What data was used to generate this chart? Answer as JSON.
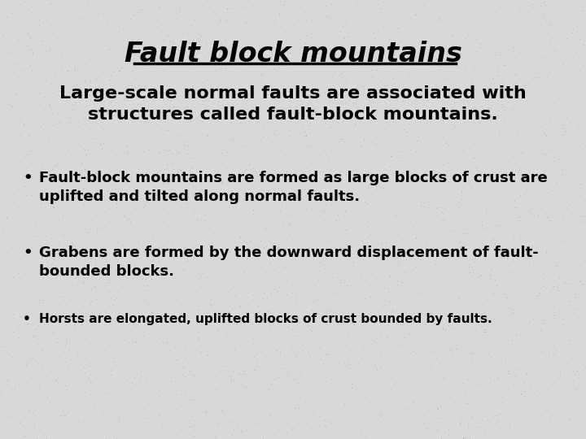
{
  "title": "Fault block mountains",
  "background_color": "#d8d8d8",
  "dot_color": "#b0b0b0",
  "text_color": "#000000",
  "intro_line1": "Large-scale normal faults are associated with",
  "intro_line2": "structures called fault-block mountains.",
  "bullet1_line1": "Fault-block mountains are formed as large blocks of crust are",
  "bullet1_line2": "uplifted and tilted along normal faults.",
  "bullet2_line1": "Grabens are formed by the downward displacement of fault-",
  "bullet2_line2": "bounded blocks.",
  "bullet3_line1": "Horsts are elongated, uplifted blocks of crust bounded by faults.",
  "title_fontsize": 24,
  "intro_fontsize": 16,
  "bullet_fontsize": 13,
  "bullet3_fontsize": 11
}
